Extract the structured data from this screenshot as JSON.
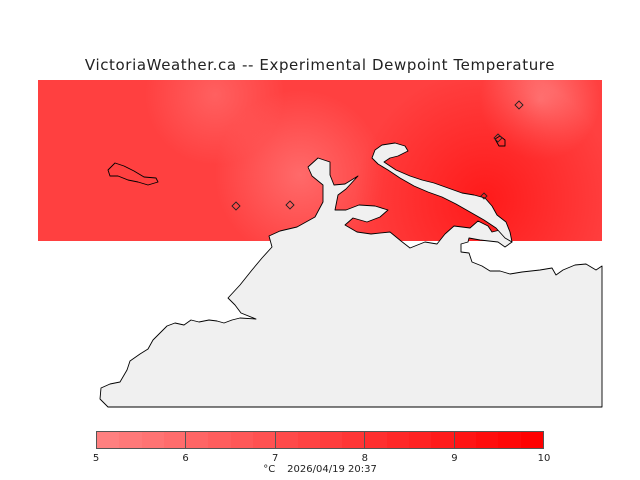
{
  "title": "VictoriaWeather.ca -- Experimental Dewpoint Temperature",
  "legend": {
    "unit": "°C",
    "timestamp": "2026/04/19 20:37",
    "ticks": [
      "5",
      "6",
      "7",
      "8",
      "9",
      "10"
    ],
    "min": 5,
    "max": 10,
    "color_low": "#ff8080",
    "color_high": "#ff0000"
  },
  "map": {
    "field_color": "#ff4040",
    "land_color": "#f0f0f0",
    "coastline_color": "#000000",
    "station_markers": 5,
    "marker_icon": "diamond-icon"
  }
}
